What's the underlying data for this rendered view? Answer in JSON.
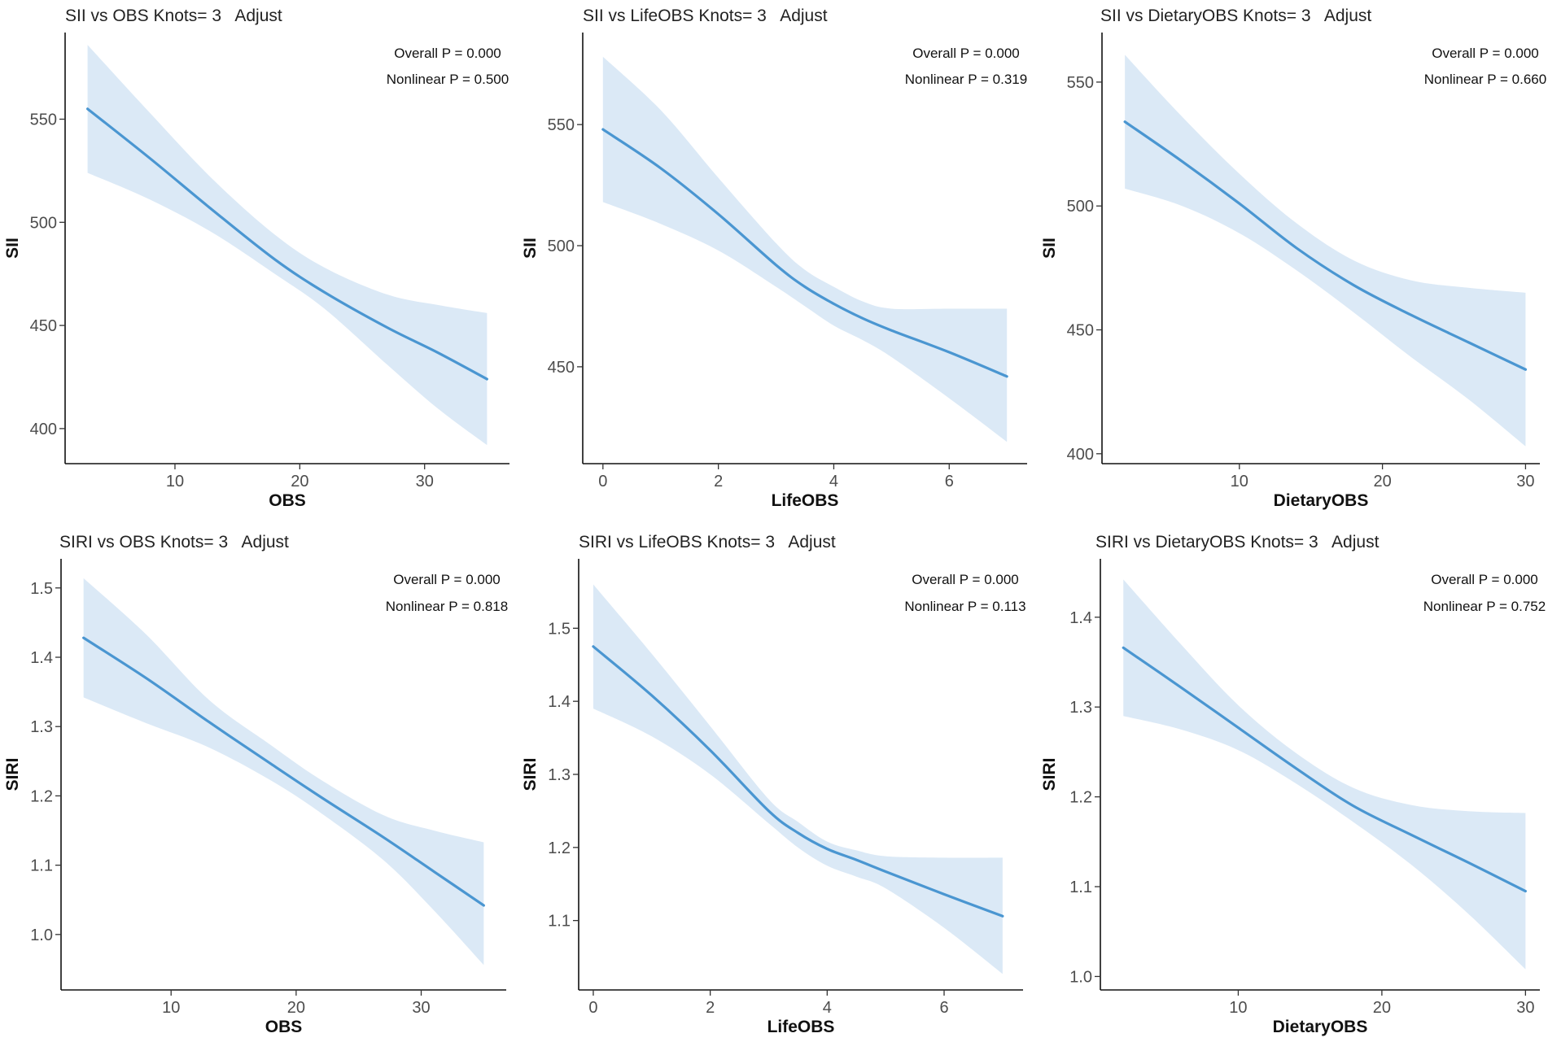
{
  "colors": {
    "line": "#4a96d1",
    "band": "#dbe9f6"
  },
  "chart_data": [
    {
      "type": "line",
      "title": "SII vs OBS Knots= 3   Adjust",
      "xlabel": "OBS",
      "ylabel": "SII",
      "xlim": [
        1.2,
        36.8
      ],
      "ylim": [
        383,
        592
      ],
      "xticks": [
        10,
        20,
        30
      ],
      "yticks": [
        400,
        450,
        500,
        550
      ],
      "xtick_labels": [
        "10",
        "20",
        "30"
      ],
      "ytick_labels": [
        "400",
        "450",
        "500",
        "550"
      ],
      "annotations": [
        "Overall P = 0.000",
        "Nonlinear P = 0.500"
      ],
      "series": [
        {
          "name": "fit",
          "x": [
            3,
            8,
            13,
            18,
            22,
            27,
            31,
            35
          ],
          "y": [
            555,
            531,
            506,
            482,
            466,
            449,
            437,
            424
          ]
        },
        {
          "name": "lower",
          "x": [
            3,
            8,
            13,
            18,
            22,
            27,
            31,
            35
          ],
          "y": [
            524,
            511,
            495,
            475,
            458,
            431,
            410,
            392
          ]
        },
        {
          "name": "upper",
          "x": [
            3,
            8,
            13,
            18,
            22,
            27,
            31,
            35
          ],
          "y": [
            586,
            553,
            521,
            494,
            478,
            465,
            460,
            456
          ]
        }
      ]
    },
    {
      "type": "line",
      "title": "SII vs LifeOBS Knots= 3   Adjust",
      "xlabel": "LifeOBS",
      "ylabel": "SII",
      "xlim": [
        -0.35,
        7.35
      ],
      "ylim": [
        410,
        588
      ],
      "xticks": [
        0,
        2,
        4,
        6
      ],
      "yticks": [
        450,
        500,
        550
      ],
      "xtick_labels": [
        "0",
        "2",
        "4",
        "6"
      ],
      "ytick_labels": [
        "450",
        "500",
        "550"
      ],
      "annotations": [
        "Overall P = 0.000",
        "Nonlinear P = 0.319"
      ],
      "series": [
        {
          "name": "fit",
          "x": [
            0,
            1,
            2,
            3,
            3.5,
            4,
            4.5,
            5,
            6,
            7
          ],
          "y": [
            548,
            532,
            513,
            492,
            483,
            476,
            470,
            465,
            456,
            446
          ]
        },
        {
          "name": "lower",
          "x": [
            0,
            1,
            2,
            3,
            3.5,
            4,
            4.5,
            5,
            6,
            7
          ],
          "y": [
            518,
            509,
            498,
            483,
            475,
            467,
            461,
            454,
            437,
            419
          ]
        },
        {
          "name": "upper",
          "x": [
            0,
            1,
            2,
            3,
            3.5,
            4,
            4.5,
            5,
            6,
            7
          ],
          "y": [
            578,
            556,
            528,
            501,
            490,
            483,
            477,
            474,
            474,
            474
          ]
        }
      ]
    },
    {
      "type": "line",
      "title": "SII vs DietaryOBS Knots= 3   Adjust",
      "xlabel": "DietaryOBS",
      "ylabel": "SII",
      "xlim": [
        0.4,
        31.0
      ],
      "ylim": [
        396,
        570
      ],
      "xticks": [
        10,
        20,
        30
      ],
      "yticks": [
        400,
        450,
        500,
        550
      ],
      "xtick_labels": [
        "10",
        "20",
        "30"
      ],
      "ytick_labels": [
        "400",
        "450",
        "500",
        "550"
      ],
      "annotations": [
        "Overall P = 0.000",
        "Nonlinear P = 0.660"
      ],
      "series": [
        {
          "name": "fit",
          "x": [
            2,
            6,
            10,
            14,
            18,
            22,
            26,
            30
          ],
          "y": [
            534,
            518,
            501,
            483,
            468,
            456,
            445,
            434
          ]
        },
        {
          "name": "lower",
          "x": [
            2,
            6,
            10,
            14,
            18,
            22,
            26,
            30
          ],
          "y": [
            507,
            500,
            489,
            474,
            457,
            439,
            422,
            403
          ]
        },
        {
          "name": "upper",
          "x": [
            2,
            6,
            10,
            14,
            18,
            22,
            26,
            30
          ],
          "y": [
            561,
            536,
            513,
            493,
            478,
            470,
            467,
            465
          ]
        }
      ]
    },
    {
      "type": "line",
      "title": "SIRI vs OBS Knots= 3   Adjust",
      "xlabel": "OBS",
      "ylabel": "SIRI",
      "xlim": [
        1.2,
        36.8
      ],
      "ylim": [
        0.92,
        1.542
      ],
      "xticks": [
        10,
        20,
        30
      ],
      "yticks": [
        1.0,
        1.1,
        1.2,
        1.3,
        1.4,
        1.5
      ],
      "xtick_labels": [
        "10",
        "20",
        "30"
      ],
      "ytick_labels": [
        "1.0",
        "1.1",
        "1.2",
        "1.3",
        "1.4",
        "1.5"
      ],
      "annotations": [
        "Overall P = 0.000",
        "Nonlinear P = 0.818"
      ],
      "series": [
        {
          "name": "fit",
          "x": [
            3,
            8,
            13,
            18,
            22,
            27,
            31,
            35
          ],
          "y": [
            1.428,
            1.37,
            1.307,
            1.246,
            1.198,
            1.14,
            1.091,
            1.042
          ]
        },
        {
          "name": "lower",
          "x": [
            3,
            8,
            13,
            18,
            22,
            27,
            31,
            35
          ],
          "y": [
            1.342,
            1.305,
            1.27,
            1.222,
            1.175,
            1.107,
            1.035,
            0.956
          ]
        },
        {
          "name": "upper",
          "x": [
            3,
            8,
            13,
            18,
            22,
            27,
            31,
            35
          ],
          "y": [
            1.514,
            1.433,
            1.339,
            1.273,
            1.223,
            1.172,
            1.15,
            1.133
          ]
        }
      ]
    },
    {
      "type": "line",
      "title": "SIRI vs LifeOBS Knots= 3   Adjust",
      "xlabel": "LifeOBS",
      "ylabel": "SIRI",
      "xlim": [
        -0.25,
        7.35
      ],
      "ylim": [
        1.005,
        1.595
      ],
      "xticks": [
        0,
        2,
        4,
        6
      ],
      "yticks": [
        1.1,
        1.2,
        1.3,
        1.4,
        1.5
      ],
      "xtick_labels": [
        "0",
        "2",
        "4",
        "6"
      ],
      "ytick_labels": [
        "1.1",
        "1.2",
        "1.3",
        "1.4",
        "1.5"
      ],
      "annotations": [
        "Overall P = 0.000",
        "Nonlinear P = 0.113"
      ],
      "series": [
        {
          "name": "fit",
          "x": [
            0,
            1,
            2,
            3,
            3.5,
            4,
            4.5,
            5,
            6,
            7
          ],
          "y": [
            1.475,
            1.408,
            1.333,
            1.25,
            1.22,
            1.198,
            1.183,
            1.167,
            1.136,
            1.106
          ]
        },
        {
          "name": "lower",
          "x": [
            0,
            1,
            2,
            3,
            3.5,
            4,
            4.5,
            5,
            6,
            7
          ],
          "y": [
            1.39,
            1.352,
            1.3,
            1.233,
            1.2,
            1.175,
            1.16,
            1.144,
            1.09,
            1.027
          ]
        },
        {
          "name": "upper",
          "x": [
            0,
            1,
            2,
            3,
            3.5,
            4,
            4.5,
            5,
            6,
            7
          ],
          "y": [
            1.56,
            1.465,
            1.366,
            1.266,
            1.235,
            1.208,
            1.196,
            1.188,
            1.186,
            1.186
          ]
        }
      ]
    },
    {
      "type": "line",
      "title": "SIRI vs DietaryOBS Knots= 3   Adjust",
      "xlabel": "DietaryOBS",
      "ylabel": "SIRI",
      "xlim": [
        0.4,
        31.0
      ],
      "ylim": [
        0.985,
        1.465
      ],
      "xticks": [
        10,
        20,
        30
      ],
      "yticks": [
        1.0,
        1.1,
        1.2,
        1.3,
        1.4
      ],
      "xtick_labels": [
        "10",
        "20",
        "30"
      ],
      "ytick_labels": [
        "1.0",
        "1.1",
        "1.2",
        "1.3",
        "1.4"
      ],
      "annotations": [
        "Overall P = 0.000",
        "Nonlinear P = 0.752"
      ],
      "series": [
        {
          "name": "fit",
          "x": [
            2,
            6,
            10,
            14,
            18,
            22,
            26,
            30
          ],
          "y": [
            1.366,
            1.322,
            1.277,
            1.232,
            1.19,
            1.158,
            1.127,
            1.095
          ]
        },
        {
          "name": "lower",
          "x": [
            2,
            6,
            10,
            14,
            18,
            22,
            26,
            30
          ],
          "y": [
            1.29,
            1.275,
            1.252,
            1.215,
            1.172,
            1.125,
            1.07,
            1.008
          ]
        },
        {
          "name": "upper",
          "x": [
            2,
            6,
            10,
            14,
            18,
            22,
            26,
            30
          ],
          "y": [
            1.442,
            1.37,
            1.302,
            1.249,
            1.21,
            1.191,
            1.184,
            1.182
          ]
        }
      ]
    }
  ]
}
